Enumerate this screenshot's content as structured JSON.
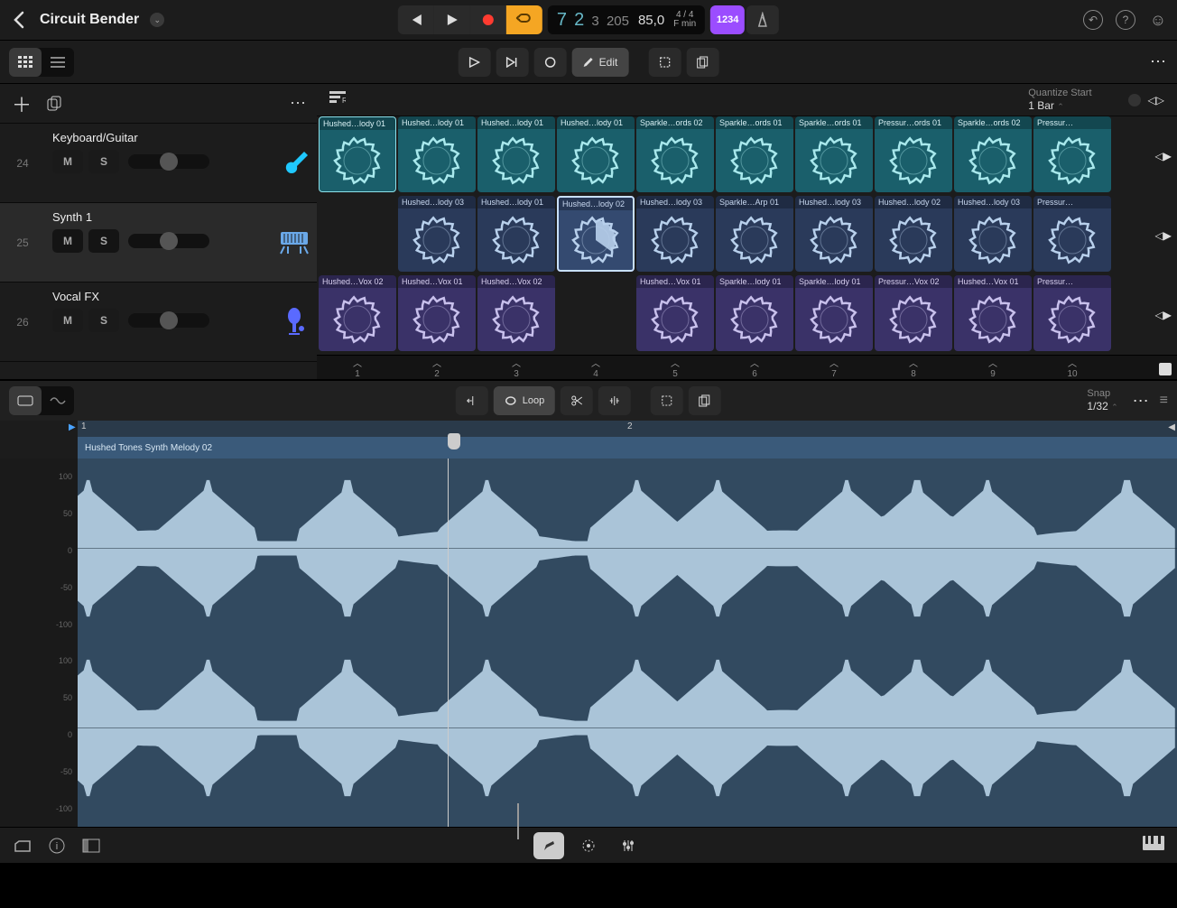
{
  "topbar": {
    "title": "Circuit Bender",
    "position": {
      "bar": "7",
      "beat": "2",
      "div": "3",
      "tick": "205"
    },
    "tempo": "85,0",
    "sig_top": "4 / 4",
    "sig_bot": "F min",
    "countin": "1234"
  },
  "toolbar2": {
    "edit_label": "Edit"
  },
  "grid_top": {
    "quantize_label": "Quantize Start",
    "quantize_value": "1 Bar"
  },
  "tracks": [
    {
      "num": "24",
      "name": "Keyboard/Guitar",
      "icon_color": "#1fc8ff",
      "icon": "guitar"
    },
    {
      "num": "25",
      "name": "Synth 1",
      "icon_color": "#6aa8e8",
      "icon": "keys",
      "selected": true
    },
    {
      "num": "26",
      "name": "Vocal FX",
      "icon_color": "#5a6aff",
      "icon": "mic"
    }
  ],
  "cells": {
    "row1": [
      {
        "l": "Hushed…lody 01",
        "sel": true
      },
      {
        "l": "Hushed…lody 01"
      },
      {
        "l": "Hushed…lody 01"
      },
      {
        "l": "Hushed…lody 01"
      },
      {
        "l": "Sparkle…ords 02"
      },
      {
        "l": "Sparkle…ords 01"
      },
      {
        "l": "Sparkle…ords 01"
      },
      {
        "l": "Pressur…ords 01"
      },
      {
        "l": "Sparkle…ords 02"
      },
      {
        "l": "Pressur…"
      }
    ],
    "row2": [
      {
        "empty": true
      },
      {
        "l": "Hushed…lody 03"
      },
      {
        "l": "Hushed…lody 01"
      },
      {
        "l": "Hushed…lody 02",
        "sel": true,
        "prog": 0.35
      },
      {
        "l": "Hushed…lody 03"
      },
      {
        "l": "Sparkle…Arp 01"
      },
      {
        "l": "Hushed…lody 03"
      },
      {
        "l": "Hushed…lody 02"
      },
      {
        "l": "Hushed…lody 03"
      },
      {
        "l": "Pressur…"
      }
    ],
    "row3": [
      {
        "l": "Hushed…Vox 02"
      },
      {
        "l": "Hushed…Vox 01"
      },
      {
        "l": "Hushed…Vox 02"
      },
      {
        "empty": true
      },
      {
        "l": "Hushed…Vox 01"
      },
      {
        "l": "Sparkle…lody 01"
      },
      {
        "l": "Sparkle…lody 01"
      },
      {
        "l": "Pressur…Vox 02"
      },
      {
        "l": "Hushed…Vox 01"
      },
      {
        "l": "Pressur…"
      }
    ]
  },
  "columns": [
    "1",
    "2",
    "3",
    "4",
    "5",
    "6",
    "7",
    "8",
    "9",
    "10"
  ],
  "editor": {
    "loop_label": "Loop",
    "snap_label": "Snap",
    "snap_value": "1/32",
    "ruler": [
      "1",
      "2"
    ],
    "region_name": "Hushed Tones Synth Melody 02",
    "scale": [
      "100",
      "50",
      "0",
      "-50",
      "-100",
      "100",
      "50",
      "0",
      "-50",
      "-100"
    ]
  },
  "colors": {
    "row1_cell": "#1a5f6b",
    "row2_cell": "#2a3a5a",
    "row3_cell": "#3a3268",
    "wave_bg": "#324a60",
    "wave_fill": "#aac4d8",
    "cycle": "#f5a623",
    "countin": "#9b4dff",
    "record": "#ff3b30"
  }
}
